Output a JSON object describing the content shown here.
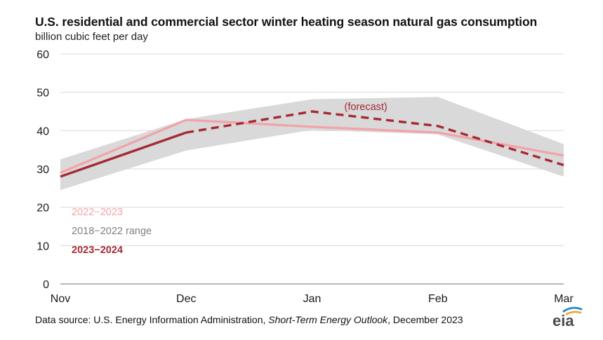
{
  "chart_data": {
    "type": "line",
    "title": "U.S. residential and commercial sector winter heating season natural gas consumption",
    "ylabel": "billion cubic feet per day",
    "categories": [
      "Nov",
      "Dec",
      "Jan",
      "Feb",
      "Mar"
    ],
    "yticks": [
      "0",
      "10",
      "20",
      "30",
      "40",
      "50",
      "60"
    ],
    "ylim": [
      0,
      60
    ],
    "grid": true,
    "series": [
      {
        "name": "2022−2023",
        "color": "#f2a3a8",
        "style": "solid",
        "values": [
          29,
          42.8,
          41,
          39.5,
          33.5
        ]
      },
      {
        "name": "2023−2024",
        "color": "#a52a34",
        "style": "solid-then-dashed",
        "solid_until": "Dec",
        "values": [
          28,
          39.5,
          45,
          41.2,
          31
        ]
      }
    ],
    "range": {
      "name": "2018−2022 range",
      "color": "#d9d9d9",
      "low": [
        24.5,
        34.8,
        40.2,
        39,
        28
      ],
      "high": [
        32.5,
        43,
        48.2,
        48.8,
        36.5
      ]
    },
    "annotations": [
      {
        "text": "(forecast)",
        "near": "Jan",
        "color": "#a52a34"
      }
    ],
    "legend_placement": "lower-left"
  },
  "footer": {
    "source_prefix": "Data source: U.S. Energy Information Administration, ",
    "source_italic": "Short-Term Energy Outlook",
    "source_suffix": ", December 2023",
    "logo_text": "eia"
  }
}
